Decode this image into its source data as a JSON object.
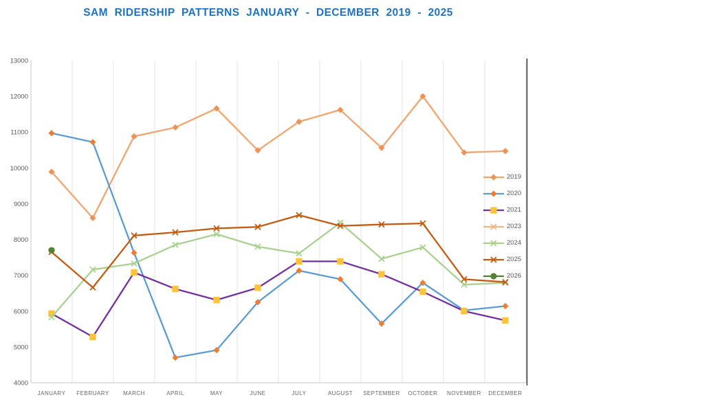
{
  "chart_title": "SAM RIDERSHIP PATTERNS JANUARY - DECEMBER 2019 - 2025",
  "colors": {
    "title": "#1D72C2",
    "axis_text": "#595959",
    "gridline": "#E3E3E3",
    "axis_line": "#C4C4C4",
    "right_border": "#262626"
  },
  "chart_data": {
    "type": "line",
    "title": "SAM RIDERSHIP PATTERNS JANUARY - DECEMBER 2019 - 2025",
    "xlabel": "",
    "ylabel": "",
    "ylim": [
      4000,
      13000
    ],
    "ytick_step": 1000,
    "yticks": [
      4000,
      5000,
      6000,
      7000,
      8000,
      9000,
      10000,
      11000,
      12000,
      13000
    ],
    "grid": "vertical-only",
    "legend_position": "right",
    "categories": [
      "JANUARY",
      "FEBRUARY",
      "MARCH",
      "APRIL",
      "MAY",
      "JUNE",
      "JULY",
      "AUGUST",
      "SEPTEMBER",
      "OCTOBER",
      "NOVEMBER",
      "DECEMBER"
    ],
    "series": [
      {
        "name": "2019",
        "line_color": "#F2A46C",
        "marker": "diamond",
        "marker_color": "#EE9355",
        "values": [
          9890,
          8600,
          10880,
          11130,
          11660,
          10490,
          11290,
          11620,
          10560,
          12000,
          10430,
          10470
        ]
      },
      {
        "name": "2020",
        "line_color": "#5B9BD5",
        "marker": "diamond",
        "marker_color": "#ED7D31",
        "values": [
          10970,
          10720,
          7630,
          4700,
          4910,
          6250,
          7130,
          6890,
          5650,
          6790,
          6020,
          6140
        ]
      },
      {
        "name": "2021",
        "line_color": "#7030A0",
        "marker": "square",
        "marker_color": "#FCC33C",
        "values": [
          5930,
          5280,
          7080,
          6620,
          6310,
          6650,
          7390,
          7390,
          7030,
          6540,
          6000,
          5740
        ]
      },
      {
        "name": "2023",
        "line_color": "#F5B585",
        "marker": "x",
        "marker_color": "#F5B585",
        "values": []
      },
      {
        "name": "2024",
        "line_color": "#A9D18E",
        "marker": "x",
        "marker_color": "#A9D18E",
        "values": [
          5830,
          7160,
          7330,
          7850,
          8150,
          7800,
          7610,
          8470,
          7460,
          7780,
          6740,
          6790
        ]
      },
      {
        "name": "2025",
        "line_color": "#C55A11",
        "marker": "x",
        "marker_color": "#C55A11",
        "values": [
          7650,
          6660,
          8110,
          8200,
          8310,
          8350,
          8680,
          8380,
          8420,
          8450,
          6890,
          6810
        ]
      },
      {
        "name": "2026",
        "line_color": "#538135",
        "marker": "circle",
        "marker_color": "#538135",
        "values": [
          7700,
          null,
          null,
          null,
          null,
          null,
          null,
          null,
          null,
          null,
          null,
          null
        ]
      }
    ]
  }
}
